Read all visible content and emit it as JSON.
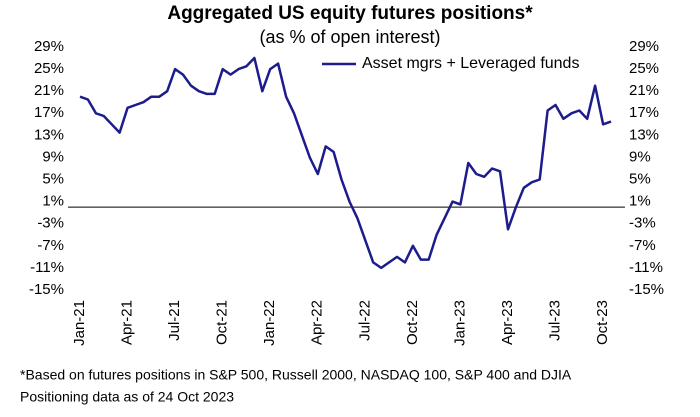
{
  "chart_data": {
    "type": "line",
    "title": "Aggregated US equity futures positions*",
    "subtitle": "(as % of open interest)",
    "categories": [
      "Jan-21",
      null,
      null,
      null,
      null,
      null,
      "Apr-21",
      null,
      null,
      null,
      null,
      null,
      "Jul-21",
      null,
      null,
      null,
      null,
      null,
      "Oct-21",
      null,
      null,
      null,
      null,
      null,
      "Jan-22",
      null,
      null,
      null,
      null,
      null,
      "Apr-22",
      null,
      null,
      null,
      null,
      null,
      "Jul-22",
      null,
      null,
      null,
      null,
      null,
      "Oct-22",
      null,
      null,
      null,
      null,
      null,
      "Jan-23",
      null,
      null,
      null,
      null,
      null,
      "Apr-23",
      null,
      null,
      null,
      null,
      null,
      "Jul-23",
      null,
      null,
      null,
      null,
      null,
      "Oct-23",
      null
    ],
    "series": [
      {
        "name": "Asset mgrs + Leveraged funds",
        "color": "#1c1c8c",
        "values": [
          20,
          19.5,
          17,
          16.5,
          15,
          13.5,
          18,
          18.5,
          19,
          20,
          20,
          21,
          25,
          24,
          22,
          21,
          20.5,
          20.5,
          25,
          24,
          25,
          25.5,
          27,
          21,
          25,
          26,
          20,
          17,
          13,
          9,
          6,
          11,
          10,
          5,
          1,
          -2,
          -6,
          -10,
          -11,
          -10,
          -9,
          -10,
          -7,
          -9.5,
          -9.5,
          -5,
          -2,
          1,
          0.5,
          8,
          6,
          5.5,
          7,
          6.5,
          -4,
          0,
          3.5,
          4.5,
          5,
          17.5,
          18.5,
          16,
          17,
          17.5,
          16,
          22,
          15,
          15.5
        ]
      }
    ],
    "ylim": [
      -15,
      29
    ],
    "yticks": [
      {
        "value": 29,
        "label": "29%"
      },
      {
        "value": 25,
        "label": "25%"
      },
      {
        "value": 21,
        "label": "21%"
      },
      {
        "value": 17,
        "label": "17%"
      },
      {
        "value": 13,
        "label": "13%"
      },
      {
        "value": 9,
        "label": "9%"
      },
      {
        "value": 5,
        "label": "5%"
      },
      {
        "value": 1,
        "label": "1%"
      },
      {
        "value": -3,
        "label": "-3%"
      },
      {
        "value": -7,
        "label": "-7%"
      },
      {
        "value": -11,
        "label": "-11%"
      },
      {
        "value": -15,
        "label": "-15%"
      }
    ],
    "grid": false,
    "legend": "top-right",
    "notes": [
      "*Based on futures positions in S&P 500, Russell 2000, NASDAQ 100, S&P 400 and DJIA",
      "Positioning data as of 24 Oct 2023"
    ]
  }
}
